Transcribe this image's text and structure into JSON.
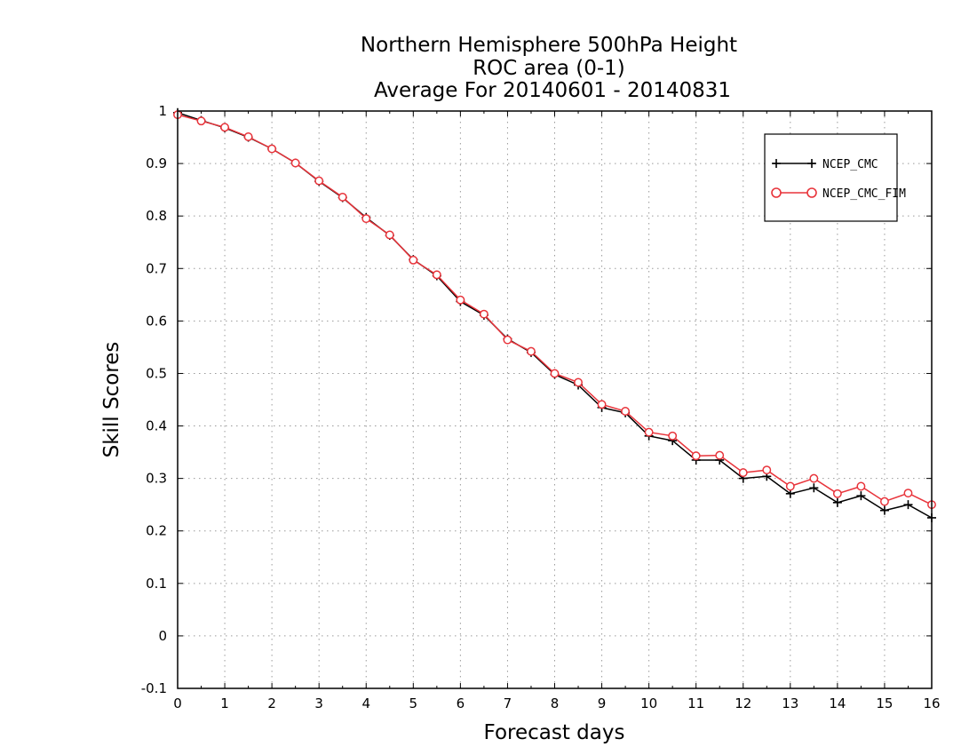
{
  "chart_data": {
    "type": "line",
    "title": [
      "Northern Hemisphere 500hPa Height",
      "ROC area (0-1)",
      "Average For 20140601 - 20140831"
    ],
    "xlabel": "Forecast days",
    "ylabel": "Skill Scores",
    "xlim": [
      0,
      16
    ],
    "ylim": [
      -0.1,
      1
    ],
    "x_ticks": [
      0,
      1,
      2,
      3,
      4,
      5,
      6,
      7,
      8,
      9,
      10,
      11,
      12,
      13,
      14,
      15,
      16
    ],
    "y_ticks": [
      -0.1,
      0,
      0.1,
      0.2,
      0.3,
      0.4,
      0.5,
      0.6,
      0.7,
      0.8,
      0.9,
      1
    ],
    "y_tick_labels": [
      "-0.1",
      "0",
      "0.1",
      "0.2",
      "0.3",
      "0.4",
      "0.5",
      "0.6",
      "0.7",
      "0.8",
      "0.9",
      "1"
    ],
    "grid": true,
    "legend_position": "top-right",
    "x": [
      0,
      0.5,
      1,
      1.5,
      2,
      2.5,
      3,
      3.5,
      4,
      4.5,
      5,
      5.5,
      6,
      6.5,
      7,
      7.5,
      8,
      8.5,
      9,
      9.5,
      10,
      10.5,
      11,
      11.5,
      12,
      12.5,
      13,
      13.5,
      14,
      14.5,
      15,
      15.5,
      16
    ],
    "series": [
      {
        "name": "NCEP_CMC",
        "color": "#000000",
        "marker": "plus",
        "values": [
          0.997,
          0.982,
          0.968,
          0.95,
          0.928,
          0.901,
          0.866,
          0.835,
          0.797,
          0.763,
          0.717,
          0.686,
          0.637,
          0.611,
          0.566,
          0.54,
          0.498,
          0.478,
          0.435,
          0.425,
          0.381,
          0.372,
          0.335,
          0.335,
          0.3,
          0.304,
          0.271,
          0.282,
          0.254,
          0.267,
          0.239,
          0.25,
          0.225
        ]
      },
      {
        "name": "NCEP_CMC_FIM",
        "color": "#e8333a",
        "marker": "circle",
        "values": [
          0.993,
          0.981,
          0.969,
          0.951,
          0.928,
          0.901,
          0.867,
          0.836,
          0.795,
          0.764,
          0.716,
          0.688,
          0.64,
          0.613,
          0.564,
          0.542,
          0.5,
          0.483,
          0.441,
          0.428,
          0.388,
          0.381,
          0.343,
          0.344,
          0.311,
          0.316,
          0.285,
          0.3,
          0.271,
          0.285,
          0.256,
          0.272,
          0.25
        ]
      }
    ]
  }
}
